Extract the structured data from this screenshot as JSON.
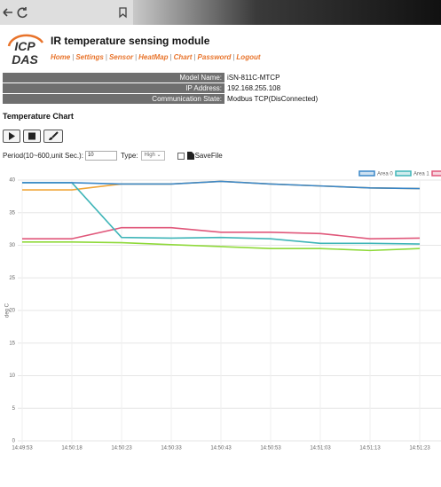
{
  "header": {
    "logo": [
      "ICP",
      "DAS"
    ],
    "title": "IR temperature sensing module",
    "nav": [
      "Home",
      "Settings",
      "Sensor",
      "HeatMap",
      "Chart",
      "Password",
      "Logout"
    ],
    "nav_separator": "|"
  },
  "info": {
    "rows": [
      [
        "Model Name:",
        "iSN-811C-MTCP"
      ],
      [
        "IP Address:",
        "192.168.255.108"
      ],
      [
        "Communication State:",
        "Modbus TCP(DisConnected)"
      ]
    ]
  },
  "section_title": "Temperature Chart",
  "controls": {
    "period_label": "Period(10~600,unit Sec.):",
    "period_value": 10,
    "type_label": "Type:",
    "type_value": "High",
    "savefile_label": "SaveFile"
  },
  "chart_data": {
    "type": "line",
    "y_label": "deg C",
    "categories": [
      "14:49:53",
      "14:50:18",
      "14:50:23",
      "14:50:33",
      "14:50:43",
      "14:50:53",
      "14:51:03",
      "14:51:13",
      "14:51:23"
    ],
    "series": [
      {
        "name": "Area 0",
        "color": "#3a87c8",
        "in_legend": true,
        "values": [
          39.6,
          39.6,
          39.4,
          39.4,
          39.8,
          39.4,
          39.1,
          38.8,
          38.7
        ]
      },
      {
        "name": "Area 1",
        "color": "#3fb5b8",
        "in_legend": true,
        "values": [
          39.6,
          39.6,
          31.2,
          31.1,
          31.2,
          31.0,
          30.3,
          30.3,
          30.2
        ]
      },
      {
        "color": "#e0577a",
        "in_legend": true,
        "values": [
          31.0,
          31.0,
          32.7,
          32.7,
          32.0,
          32.0,
          31.8,
          31.0,
          31.1
        ]
      },
      {
        "color": "#f0a63a",
        "in_legend": false,
        "values": [
          38.5,
          38.5,
          39.4,
          39.4,
          39.8,
          39.4,
          39.1,
          38.8,
          38.7
        ]
      },
      {
        "color": "#8fd93a",
        "in_legend": false,
        "values": [
          30.5,
          30.5,
          30.4,
          30.1,
          29.8,
          29.5,
          29.5,
          29.2,
          29.5
        ]
      }
    ],
    "ylim": [
      0,
      40
    ],
    "yticks": [
      0,
      5,
      10,
      15,
      20,
      25,
      30,
      35,
      40
    ],
    "grid": true
  }
}
